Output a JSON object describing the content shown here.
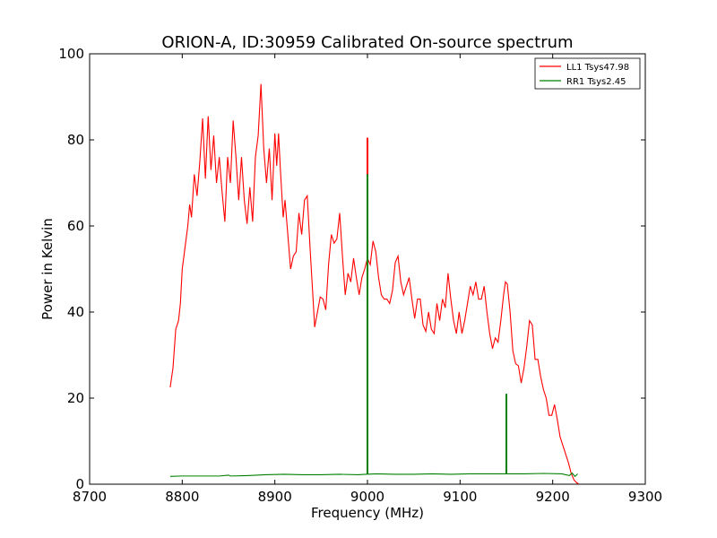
{
  "chart_data": {
    "type": "line",
    "title": "ORION-A, ID:30959 Calibrated On-source spectrum",
    "xlabel": "Frequency (MHz)",
    "ylabel": "Power in Kelvin",
    "xlim": [
      8700,
      9300
    ],
    "ylim": [
      0,
      100
    ],
    "x_ticks": [
      8700,
      8800,
      8900,
      9000,
      9100,
      9200,
      9300
    ],
    "y_ticks": [
      0,
      20,
      40,
      60,
      80,
      100
    ],
    "x_tick_labels": [
      "8700",
      "8800",
      "8900",
      "9000",
      "9100",
      "9200",
      "9300"
    ],
    "y_tick_labels": [
      "0",
      "20",
      "40",
      "60",
      "80",
      "100"
    ],
    "grid": false,
    "legend_position": "top-right",
    "series": [
      {
        "name": "LL1 Tsys47.98",
        "color": "#ff0000",
        "points": [
          [
            8787,
            22.5
          ],
          [
            8790,
            27
          ],
          [
            8793,
            36
          ],
          [
            8796,
            38
          ],
          [
            8798,
            42
          ],
          [
            8800,
            50
          ],
          [
            8803,
            55
          ],
          [
            8806,
            60
          ],
          [
            8808,
            65
          ],
          [
            8810,
            62
          ],
          [
            8813,
            72
          ],
          [
            8816,
            67
          ],
          [
            8819,
            75
          ],
          [
            8822,
            85
          ],
          [
            8825,
            71
          ],
          [
            8828,
            85.5
          ],
          [
            8831,
            73
          ],
          [
            8834,
            81
          ],
          [
            8837,
            70
          ],
          [
            8840,
            76
          ],
          [
            8843,
            68
          ],
          [
            8846,
            61
          ],
          [
            8849,
            76
          ],
          [
            8852,
            70
          ],
          [
            8855,
            84.5
          ],
          [
            8858,
            76
          ],
          [
            8861,
            66
          ],
          [
            8864,
            76
          ],
          [
            8867,
            66
          ],
          [
            8870,
            60.5
          ],
          [
            8873,
            69
          ],
          [
            8876,
            61
          ],
          [
            8879,
            76
          ],
          [
            8882,
            81
          ],
          [
            8885,
            93
          ],
          [
            8888,
            78
          ],
          [
            8891,
            70
          ],
          [
            8894,
            78
          ],
          [
            8897,
            66
          ],
          [
            8900,
            81.5
          ],
          [
            8902,
            74
          ],
          [
            8904,
            81.5
          ],
          [
            8906,
            73
          ],
          [
            8909,
            62
          ],
          [
            8911,
            66
          ],
          [
            8914,
            58
          ],
          [
            8917,
            50
          ],
          [
            8920,
            53
          ],
          [
            8923,
            54
          ],
          [
            8926,
            63
          ],
          [
            8929,
            58
          ],
          [
            8932,
            66
          ],
          [
            8935,
            67
          ],
          [
            8938,
            55
          ],
          [
            8941,
            44
          ],
          [
            8943,
            36.5
          ],
          [
            8946,
            40
          ],
          [
            8949,
            43.5
          ],
          [
            8952,
            43
          ],
          [
            8955,
            40.5
          ],
          [
            8958,
            51
          ],
          [
            8961,
            58
          ],
          [
            8964,
            56
          ],
          [
            8967,
            57
          ],
          [
            8970,
            63
          ],
          [
            8973,
            53
          ],
          [
            8976,
            44
          ],
          [
            8979,
            49
          ],
          [
            8982,
            47
          ],
          [
            8985,
            52.5
          ],
          [
            8988,
            48
          ],
          [
            8991,
            44
          ],
          [
            8994,
            48
          ],
          [
            8997,
            50
          ],
          [
            9000,
            52.5
          ],
          [
            9003,
            51
          ],
          [
            9006,
            56.5
          ],
          [
            9009,
            54
          ],
          [
            9012,
            48
          ],
          [
            9015,
            44
          ],
          [
            9018,
            43
          ],
          [
            9021,
            43
          ],
          [
            9024,
            42
          ],
          [
            9027,
            45
          ],
          [
            9030,
            51.5
          ],
          [
            9033,
            53
          ],
          [
            9036,
            47
          ],
          [
            9039,
            44
          ],
          [
            9042,
            46
          ],
          [
            9045,
            48
          ],
          [
            9048,
            43
          ],
          [
            9051,
            38.5
          ],
          [
            9054,
            43
          ],
          [
            9057,
            43
          ],
          [
            9060,
            37
          ],
          [
            9063,
            35.5
          ],
          [
            9066,
            40
          ],
          [
            9069,
            36
          ],
          [
            9072,
            35
          ],
          [
            9075,
            42
          ],
          [
            9078,
            38
          ],
          [
            9081,
            43
          ],
          [
            9084,
            41
          ],
          [
            9087,
            49
          ],
          [
            9090,
            43
          ],
          [
            9093,
            38
          ],
          [
            9096,
            35
          ],
          [
            9099,
            40
          ],
          [
            9102,
            35
          ],
          [
            9105,
            38
          ],
          [
            9108,
            42
          ],
          [
            9111,
            46
          ],
          [
            9114,
            44
          ],
          [
            9117,
            47
          ],
          [
            9120,
            43
          ],
          [
            9123,
            43
          ],
          [
            9126,
            46
          ],
          [
            9129,
            40
          ],
          [
            9132,
            35
          ],
          [
            9135,
            31.5
          ],
          [
            9138,
            34
          ],
          [
            9141,
            33
          ],
          [
            9144,
            38
          ],
          [
            9147,
            44
          ],
          [
            9149,
            47
          ],
          [
            9151,
            46.5
          ],
          [
            9154,
            40
          ],
          [
            9157,
            31
          ],
          [
            9160,
            28
          ],
          [
            9163,
            27.5
          ],
          [
            9166,
            23.5
          ],
          [
            9169,
            27
          ],
          [
            9172,
            32
          ],
          [
            9175,
            38
          ],
          [
            9178,
            37
          ],
          [
            9181,
            29
          ],
          [
            9184,
            29
          ],
          [
            9187,
            25
          ],
          [
            9190,
            22
          ],
          [
            9193,
            20
          ],
          [
            9196,
            16
          ],
          [
            9199,
            16
          ],
          [
            9202,
            18.5
          ],
          [
            9205,
            15
          ],
          [
            9208,
            11
          ],
          [
            9211,
            9
          ],
          [
            9214,
            7
          ],
          [
            9217,
            5
          ],
          [
            9220,
            2.5
          ],
          [
            9223,
            1
          ],
          [
            9226,
            0.3
          ],
          [
            9228,
            0.1
          ]
        ],
        "spike": {
          "x": 9000,
          "peak": 80.5
        }
      },
      {
        "name": "RR1 Tsys2.45",
        "color": "#008000",
        "points": [
          [
            8787,
            1.8
          ],
          [
            8800,
            1.9
          ],
          [
            8820,
            1.9
          ],
          [
            8840,
            1.9
          ],
          [
            8850,
            2.1
          ],
          [
            8852,
            1.9
          ],
          [
            8870,
            2.0
          ],
          [
            8890,
            2.2
          ],
          [
            8910,
            2.3
          ],
          [
            8930,
            2.2
          ],
          [
            8950,
            2.2
          ],
          [
            8970,
            2.3
          ],
          [
            8990,
            2.2
          ],
          [
            8998,
            2.3
          ],
          [
            9010,
            2.4
          ],
          [
            9030,
            2.3
          ],
          [
            9050,
            2.3
          ],
          [
            9070,
            2.4
          ],
          [
            9090,
            2.3
          ],
          [
            9110,
            2.4
          ],
          [
            9130,
            2.4
          ],
          [
            9150,
            2.4
          ],
          [
            9170,
            2.4
          ],
          [
            9190,
            2.5
          ],
          [
            9210,
            2.4
          ],
          [
            9218,
            2.0
          ],
          [
            9221,
            2.6
          ],
          [
            9224,
            1.8
          ],
          [
            9227,
            2.4
          ]
        ],
        "spikes": [
          {
            "x": 9000,
            "peak": 72
          },
          {
            "x": 9150,
            "peak": 21
          }
        ]
      }
    ]
  }
}
